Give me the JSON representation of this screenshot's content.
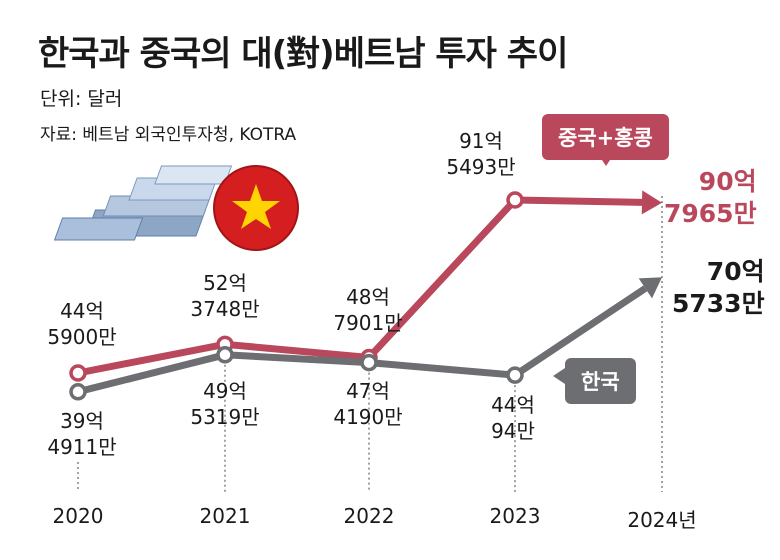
{
  "header": {
    "title": "한국과 중국의 대(對)베트남 투자 추이",
    "unit": "단위: 달러",
    "source": "자료: 베트남 외국인투자청, KOTRA"
  },
  "legend": {
    "china": "중국+홍콩",
    "korea": "한국"
  },
  "colors": {
    "china": "#b9485c",
    "korea": "#6d6e71"
  },
  "labels": {
    "china": [
      {
        "line1": "44억",
        "line2": "5900만"
      },
      {
        "line1": "52억",
        "line2": "3748만"
      },
      {
        "line1": "48억",
        "line2": "7901만"
      },
      {
        "line1": "91억",
        "line2": "5493만"
      },
      {
        "line1": "90억",
        "line2": "7965만"
      }
    ],
    "korea": [
      {
        "line1": "39억",
        "line2": "4911만"
      },
      {
        "line1": "49억",
        "line2": "5319만"
      },
      {
        "line1": "47억",
        "line2": "4190만"
      },
      {
        "line1": "44억",
        "line2": "94만"
      },
      {
        "line1": "70억",
        "line2": "5733만"
      }
    ]
  },
  "chart_data": {
    "type": "line",
    "title": "한국과 중국의 대(對)베트남 투자 추이",
    "unit": "달러",
    "categories": [
      "2020",
      "2021",
      "2022",
      "2023",
      "2024년"
    ],
    "series": [
      {
        "name": "중국+홍콩",
        "values": [
          4459000000,
          5237480000,
          4879010000,
          9154930000,
          9079650000
        ]
      },
      {
        "name": "한국",
        "values": [
          3949110000,
          4953190000,
          4741900000,
          4400940000,
          7057330000
        ]
      }
    ]
  }
}
